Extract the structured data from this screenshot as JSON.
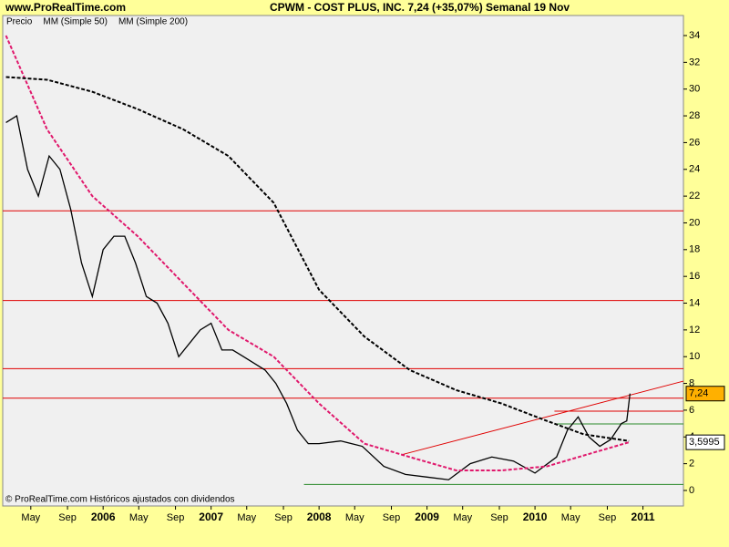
{
  "site": "www.ProRealTime.com",
  "footer": "© ProRealTime.com  Históricos ajustados con dividendos",
  "chart_data": {
    "type": "line",
    "title": "CPWM - COST PLUS, INC.    7,24 (+35,07%)    Semanal  19 Nov",
    "xlim": [
      2005.07,
      2011.375
    ],
    "ylim": [
      -1.16,
      35.5
    ],
    "yticks": [
      0,
      2,
      4,
      6,
      8,
      10,
      12,
      14,
      16,
      18,
      20,
      22,
      24,
      26,
      28,
      30,
      32,
      34
    ],
    "xticks": [
      {
        "value": 2005.33,
        "label": "May"
      },
      {
        "value": 2005.67,
        "label": "Sep"
      },
      {
        "value": 2006,
        "label": "2006"
      },
      {
        "value": 2006.33,
        "label": "May"
      },
      {
        "value": 2006.67,
        "label": "Sep"
      },
      {
        "value": 2007,
        "label": "2007"
      },
      {
        "value": 2007.33,
        "label": "May"
      },
      {
        "value": 2007.67,
        "label": "Sep"
      },
      {
        "value": 2008,
        "label": "2008"
      },
      {
        "value": 2008.33,
        "label": "May"
      },
      {
        "value": 2008.67,
        "label": "Sep"
      },
      {
        "value": 2009,
        "label": "2009"
      },
      {
        "value": 2009.33,
        "label": "May"
      },
      {
        "value": 2009.67,
        "label": "Sep"
      },
      {
        "value": 2010,
        "label": "2010"
      },
      {
        "value": 2010.33,
        "label": "May"
      },
      {
        "value": 2010.67,
        "label": "Sep"
      },
      {
        "value": 2011,
        "label": "2011"
      }
    ],
    "series": [
      {
        "name": "Precio",
        "color": "#000000",
        "x": [
          2005.1,
          2005.2,
          2005.3,
          2005.4,
          2005.5,
          2005.6,
          2005.7,
          2005.8,
          2005.9,
          2006.0,
          2006.1,
          2006.2,
          2006.3,
          2006.4,
          2006.5,
          2006.6,
          2006.7,
          2006.8,
          2006.9,
          2007.0,
          2007.1,
          2007.2,
          2007.3,
          2007.4,
          2007.5,
          2007.6,
          2007.7,
          2007.8,
          2007.9,
          2008.0,
          2008.2,
          2008.4,
          2008.6,
          2008.8,
          2009.0,
          2009.2,
          2009.4,
          2009.6,
          2009.8,
          2010.0,
          2010.2,
          2010.3,
          2010.4,
          2010.5,
          2010.6,
          2010.7,
          2010.8,
          2010.85,
          2010.88
        ],
        "values": [
          27.5,
          28,
          24,
          22,
          25,
          24,
          21,
          17,
          14.5,
          18,
          19,
          19,
          17,
          14.5,
          14,
          12.5,
          10,
          11,
          12,
          12.5,
          10.5,
          10.5,
          10,
          9.5,
          9,
          8,
          6.5,
          4.5,
          3.5,
          3.5,
          3.7,
          3.3,
          1.8,
          1.2,
          1.0,
          0.8,
          2.0,
          2.5,
          2.2,
          1.3,
          2.5,
          4.5,
          5.5,
          4.0,
          3.3,
          3.8,
          5.0,
          5.2,
          7.24
        ]
      },
      {
        "name": "MM (Simple 50)",
        "color": "#e0186c",
        "x": [
          2005.1,
          2005.48,
          2005.9,
          2006.32,
          2006.74,
          2007.16,
          2007.58,
          2008.0,
          2008.42,
          2008.84,
          2009.27,
          2009.69,
          2010.11,
          2010.53,
          2010.87
        ],
        "values": [
          34,
          27,
          22,
          19,
          15.5,
          12,
          10,
          6.5,
          3.5,
          2.5,
          1.5,
          1.5,
          1.8,
          2.8,
          3.6
        ]
      },
      {
        "name": "MM (Simple 200)",
        "color": "#000000",
        "x": [
          2005.1,
          2005.48,
          2005.9,
          2006.32,
          2006.74,
          2007.16,
          2007.58,
          2008.0,
          2008.42,
          2008.84,
          2009.27,
          2009.69,
          2010.11,
          2010.45,
          2010.87
        ],
        "values": [
          30.9,
          30.7,
          29.8,
          28.5,
          27,
          25,
          21.5,
          15,
          11.5,
          9,
          7.5,
          6.5,
          5.2,
          4.2,
          3.7
        ]
      }
    ],
    "hlines": [
      {
        "value": 20.9,
        "color": "#e00000"
      },
      {
        "value": 14.2,
        "color": "#e00000"
      },
      {
        "value": 9.1,
        "color": "#e00000"
      },
      {
        "value": 6.9,
        "color": "#e00000"
      }
    ],
    "segments": [
      {
        "x": [
          2010.18,
          2011.375
        ],
        "y": [
          5.93,
          5.93
        ],
        "color": "#e00000"
      },
      {
        "x": [
          2010.18,
          2011.375
        ],
        "y": [
          4.97,
          4.97
        ],
        "color": "#2a8a2a"
      },
      {
        "x": [
          2007.86,
          2011.375
        ],
        "y": [
          0.45,
          0.45
        ],
        "color": "#2a8a2a"
      },
      {
        "x": [
          2008.76,
          2011.375
        ],
        "y": [
          2.66,
          8.17
        ],
        "color": "#e00000"
      }
    ],
    "last_labels": [
      {
        "value": 7.24,
        "label": "7,24",
        "color": "#ffb000"
      },
      {
        "value": 3.5995,
        "label": "3,5995",
        "color": "#ffffff"
      }
    ]
  }
}
